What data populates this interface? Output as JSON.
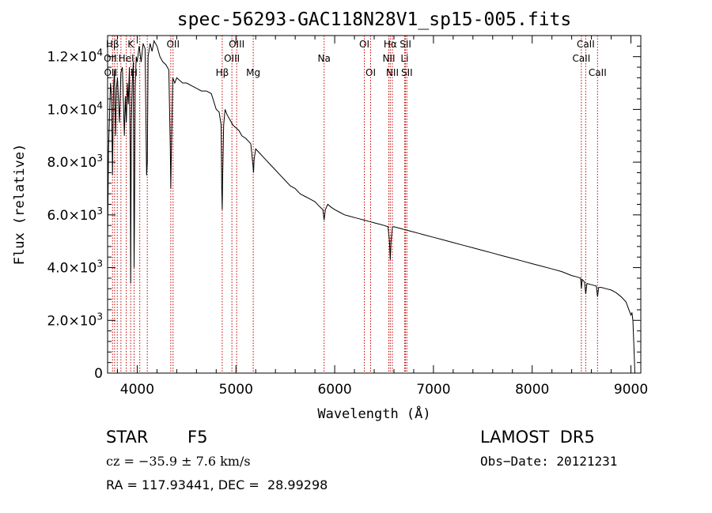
{
  "chart_data": {
    "type": "line",
    "title": "spec-56293-GAC118N28V1_sp15-005.fits",
    "xlabel": "Wavelength (Å)",
    "ylabel": "Flux (relative)",
    "xlim": [
      3700,
      9100
    ],
    "ylim": [
      0,
      12800
    ],
    "grid": false,
    "x_ticks": [
      4000,
      5000,
      6000,
      7000,
      8000,
      9000
    ],
    "x_tick_labels": [
      "4000",
      "5000",
      "6000",
      "7000",
      "8000",
      "9000"
    ],
    "y_ticks": [
      0,
      2000,
      4000,
      6000,
      8000,
      10000,
      12000
    ],
    "y_tick_labels": [
      {
        "mant": "0",
        "exp": ""
      },
      {
        "mant": "2.0×10",
        "exp": "3"
      },
      {
        "mant": "4.0×10",
        "exp": "3"
      },
      {
        "mant": "6.0×10",
        "exp": "3"
      },
      {
        "mant": "8.0×10",
        "exp": "3"
      },
      {
        "mant": "1.0×10",
        "exp": "4"
      },
      {
        "mant": "1.2×10",
        "exp": "4"
      }
    ],
    "series": [
      {
        "x": [
          3700,
          3710,
          3720,
          3730,
          3740,
          3750,
          3760,
          3770,
          3780,
          3790,
          3800,
          3820,
          3835,
          3850,
          3870,
          3880,
          3890,
          3900,
          3910,
          3920,
          3930,
          3934,
          3940,
          3950,
          3960,
          3968,
          3972,
          3980,
          3990,
          4000,
          4020,
          4040,
          4060,
          4080,
          4095,
          4102,
          4110,
          4130,
          4150,
          4170,
          4200,
          4230,
          4260,
          4290,
          4320,
          4335,
          4340,
          4345,
          4360,
          4380,
          4400,
          4430,
          4460,
          4500,
          4550,
          4600,
          4650,
          4700,
          4750,
          4800,
          4830,
          4850,
          4856,
          4861,
          4866,
          4875,
          4890,
          4910,
          4940,
          4970,
          5000,
          5030,
          5060,
          5100,
          5150,
          5172,
          5178,
          5184,
          5200,
          5250,
          5300,
          5350,
          5400,
          5450,
          5500,
          5550,
          5600,
          5650,
          5700,
          5750,
          5800,
          5850,
          5880,
          5893,
          5906,
          5930,
          5960,
          6000,
          6050,
          6100,
          6150,
          6200,
          6250,
          6300,
          6350,
          6400,
          6450,
          6500,
          6540,
          6555,
          6563,
          6571,
          6585,
          6600,
          6650,
          6700,
          6750,
          6800,
          6850,
          6900,
          7000,
          7100,
          7200,
          7300,
          7400,
          7500,
          7600,
          7700,
          7800,
          7900,
          8000,
          8100,
          8200,
          8300,
          8400,
          8450,
          8490,
          8498,
          8506,
          8530,
          8542,
          8554,
          8600,
          8650,
          8662,
          8674,
          8700,
          8750,
          8800,
          8850,
          8900,
          8950,
          8980,
          9000,
          9010,
          9020,
          9030,
          9040
        ],
        "y": [
          5000,
          8500,
          9800,
          11000,
          10500,
          7500,
          10800,
          11500,
          9000,
          10800,
          11200,
          9500,
          11400,
          11600,
          9000,
          10500,
          9500,
          11000,
          10200,
          11600,
          8000,
          3400,
          9500,
          11000,
          11800,
          4000,
          5500,
          10800,
          12000,
          11800,
          12400,
          11800,
          12500,
          12300,
          7500,
          8000,
          12000,
          12500,
          12200,
          12600,
          12400,
          12000,
          11800,
          11700,
          11500,
          8500,
          7000,
          8200,
          11200,
          11000,
          11200,
          11100,
          11000,
          11000,
          10900,
          10800,
          10700,
          10700,
          10600,
          10000,
          9900,
          9400,
          7000,
          6200,
          7500,
          9400,
          10000,
          9800,
          9600,
          9400,
          9300,
          9200,
          9000,
          8900,
          8700,
          7900,
          7600,
          8100,
          8500,
          8300,
          8100,
          7900,
          7700,
          7500,
          7300,
          7100,
          7000,
          6800,
          6700,
          6600,
          6500,
          6300,
          6200,
          5800,
          6200,
          6400,
          6300,
          6200,
          6100,
          6000,
          5950,
          5900,
          5850,
          5800,
          5750,
          5700,
          5650,
          5600,
          5550,
          5000,
          4300,
          5000,
          5550,
          5550,
          5500,
          5450,
          5400,
          5350,
          5300,
          5250,
          5150,
          5050,
          4950,
          4850,
          4750,
          4650,
          4550,
          4450,
          4350,
          4250,
          4150,
          4050,
          3950,
          3850,
          3700,
          3650,
          3600,
          3200,
          3550,
          3450,
          3000,
          3400,
          3350,
          3300,
          2900,
          3250,
          3250,
          3200,
          3150,
          3050,
          2900,
          2700,
          2400,
          2200,
          2300,
          2000,
          1000,
          0
        ]
      }
    ],
    "spectral_lines": [
      {
        "label": "Hβ",
        "x": 3750,
        "row": 1
      },
      {
        "label": "K",
        "x": 3934,
        "row": 1
      },
      {
        "label": "OII",
        "x": 3727,
        "row": 2
      },
      {
        "label": "HeI",
        "x": 3889,
        "row": 2
      },
      {
        "label": "OII",
        "x": 3730,
        "row": 3
      },
      {
        "label": "H",
        "x": 3968,
        "row": 3
      },
      {
        "label": "OII",
        "x": 4363,
        "row": 1
      },
      {
        "label": "OIII",
        "x": 5007,
        "row": 1
      },
      {
        "label": "OIII",
        "x": 4959,
        "row": 2
      },
      {
        "label": "Hβ",
        "x": 4861,
        "row": 3
      },
      {
        "label": "Mg",
        "x": 5175,
        "row": 3
      },
      {
        "label": "Na",
        "x": 5893,
        "row": 2
      },
      {
        "label": "OI",
        "x": 6300,
        "row": 1
      },
      {
        "label": "OI",
        "x": 6364,
        "row": 3
      },
      {
        "label": "Hα",
        "x": 6563,
        "row": 1
      },
      {
        "label": "NII",
        "x": 6548,
        "row": 2
      },
      {
        "label": "NII",
        "x": 6584,
        "row": 3
      },
      {
        "label": "SII",
        "x": 6717,
        "row": 1
      },
      {
        "label": "Li",
        "x": 6708,
        "row": 2
      },
      {
        "label": "SII",
        "x": 6731,
        "row": 3
      },
      {
        "label": "CaII",
        "x": 8542,
        "row": 1
      },
      {
        "label": "CaII",
        "x": 8498,
        "row": 2
      },
      {
        "label": "CaII",
        "x": 8662,
        "row": 3
      }
    ],
    "spectral_line_markers": [
      3750,
      3771,
      3798,
      3835,
      3889,
      3934,
      3968,
      4026,
      4102,
      4340,
      4363,
      4861,
      4959,
      5007,
      5175,
      5893,
      6300,
      6364,
      6548,
      6563,
      6584,
      6708,
      6717,
      6731,
      8498,
      8542,
      8662
    ],
    "line_colors": {
      "spectrum": "#000000",
      "markers": "#c00000",
      "labels": "#000000"
    }
  },
  "info": {
    "class_label": "STAR",
    "subclass": "F5",
    "survey": "LAMOST  DR5",
    "redshift": "cz = −35.9 ± 7.6 km/s",
    "obs_date": "Obs−Date: 20121231",
    "coords": "RA = 117.93441, DEC =  28.99298"
  }
}
